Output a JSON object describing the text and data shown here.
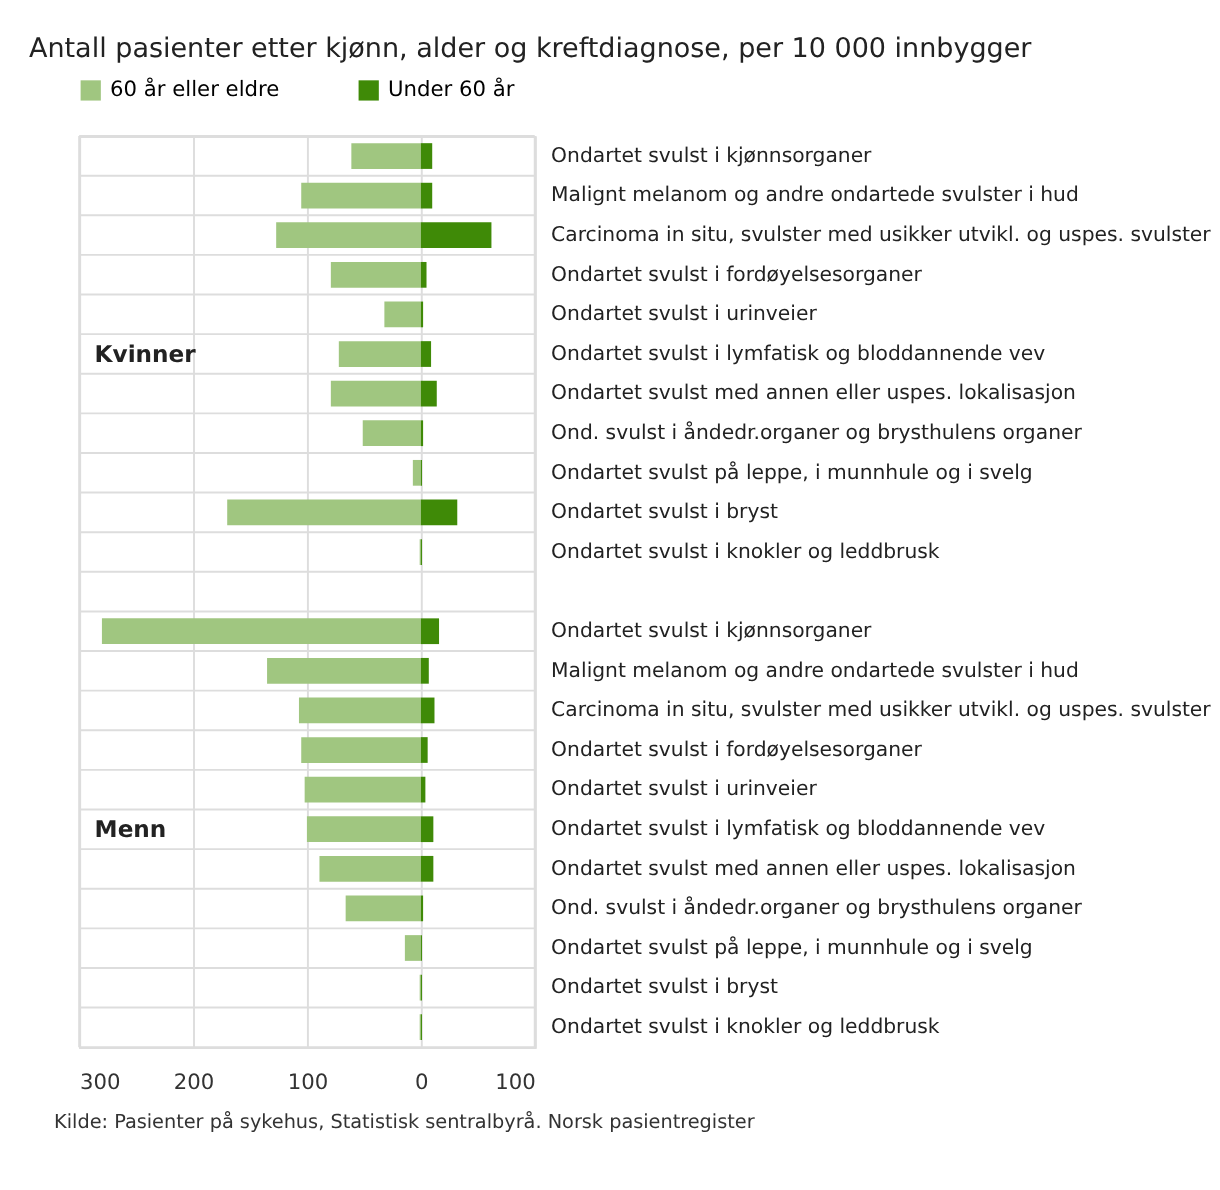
{
  "chart_data": {
    "type": "bar",
    "orientation": "horizontal",
    "title": "Antall pasienter etter kjønn, alder og kreftdiagnose, per 10 000 innbygger",
    "categories": [
      "Ondartet svulst i kjønnsorganer",
      "Malignt melanom og andre ondartede svulster i hud",
      "Carcinoma in situ, svulster med usikker utvikl. og uspes. svulster",
      "Ondartet svulst i fordøyelsesorganer",
      "Ondartet svulst i urinveier",
      "Ondartet svulst i lymfatisk og bloddannende vev",
      "Ondartet svulst med annen eller uspes. lokalisasjon",
      "Ond. svulst i åndedr.organer og brysthulens organer",
      "Ondartet svulst på leppe, i munnhule og i svelg",
      "Ondartet svulst i bryst",
      "Ondartet svulst i knokler og leddbrusk",
      null,
      "Ondartet svulst i kjønnsorganer",
      "Malignt melanom og andre ondartede svulster i hud",
      "Carcinoma in situ, svulster med usikker utvikl. og uspes. svulster",
      "Ondartet svulst i fordøyelsesorganer",
      "Ondartet svulst i urinveier",
      "Ondartet svulst i lymfatisk og bloddannende vev",
      "Ondartet svulst med annen eller uspes. lokalisasjon",
      "Ond. svulst i åndedr.organer og brysthulens organer",
      "Ondartet svulst på leppe, i munnhule og i svelg",
      "Ondartet svulst i bryst",
      "Ondartet svulst i knokler og leddbrusk"
    ],
    "series": [
      {
        "name": "60 år eller eldre",
        "color": "#a0c680",
        "values": [
          -61,
          -105,
          -127,
          -79,
          -32,
          -72,
          -79,
          -51,
          -7,
          -170,
          -1,
          null,
          -280,
          -135,
          -107,
          -105,
          -102,
          -100,
          -89,
          -66,
          -14,
          -1,
          -1
        ]
      },
      {
        "name": "Under 60 år",
        "color": "#3f8a07",
        "values": [
          10,
          10,
          62,
          5,
          2,
          9,
          14,
          2,
          1,
          32,
          1,
          null,
          16,
          7,
          12,
          6,
          4,
          11,
          11,
          2,
          1,
          1,
          1
        ]
      }
    ],
    "xlim": [
      -300,
      100
    ],
    "xticks": [
      {
        "value": -300,
        "label": "300"
      },
      {
        "value": -200,
        "label": "200"
      },
      {
        "value": -100,
        "label": "100"
      },
      0,
      100
    ],
    "grid": true,
    "legend": "top left",
    "stacked": true,
    "annotations": [
      "Kvinner",
      "Menn",
      "Kilde: Pasienter på sykehus, Statistisk sentralbyrå. Norsk pasientregister"
    ]
  }
}
